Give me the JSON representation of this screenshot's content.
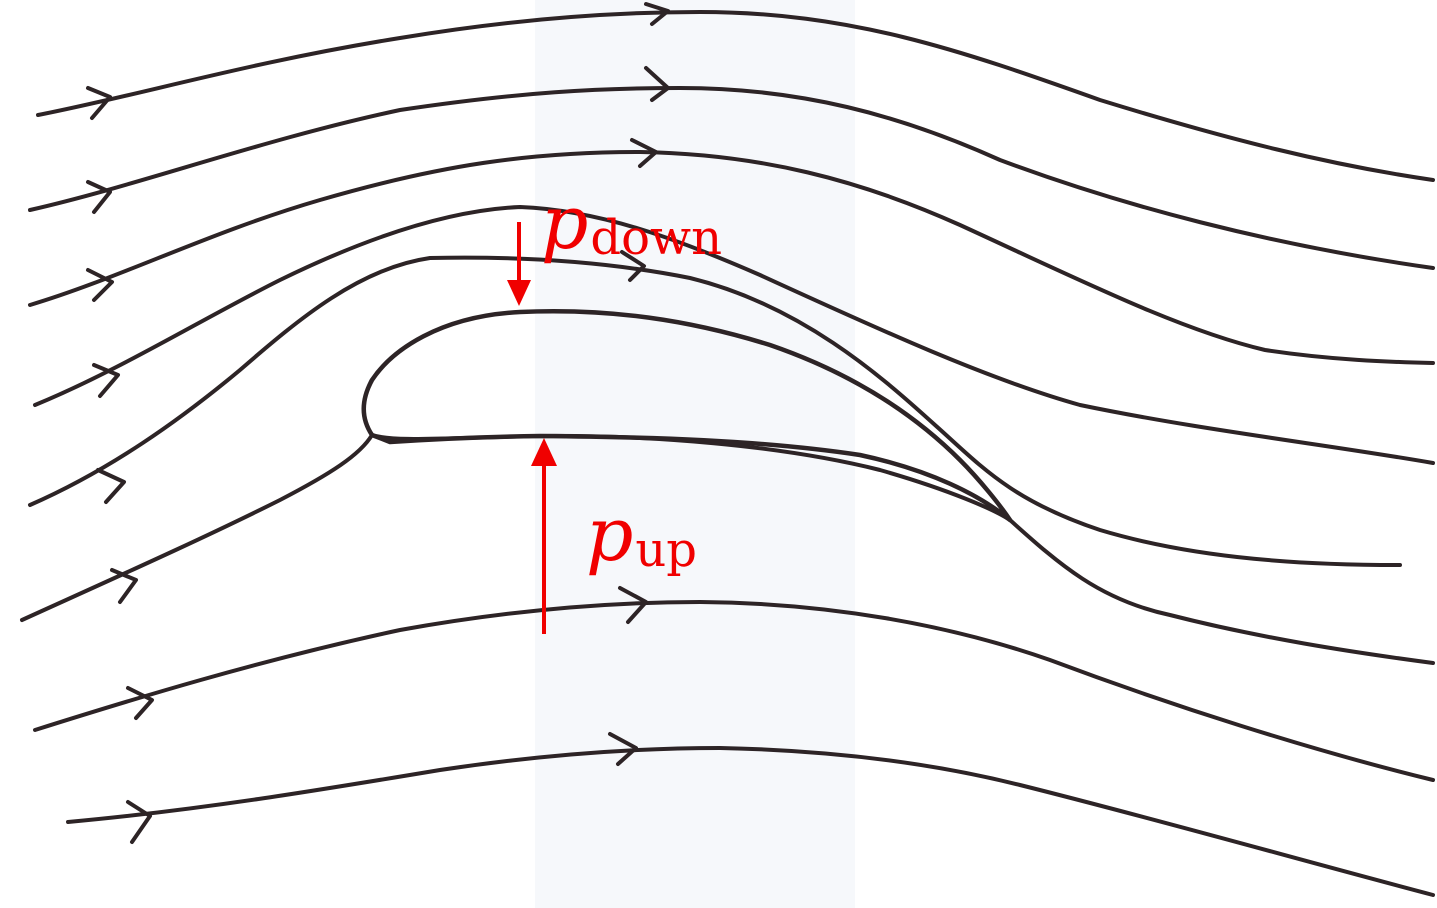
{
  "figure": {
    "ink_color": "#2d2426",
    "accent_color": "#f00000",
    "streamline_count": 10,
    "labels": {
      "p_down": {
        "symbol": "p",
        "subscript": "down"
      },
      "p_up": {
        "symbol": "p",
        "subscript": "up"
      }
    },
    "arrows": {
      "p_down": {
        "direction": "down"
      },
      "p_up": {
        "direction": "up"
      }
    }
  }
}
